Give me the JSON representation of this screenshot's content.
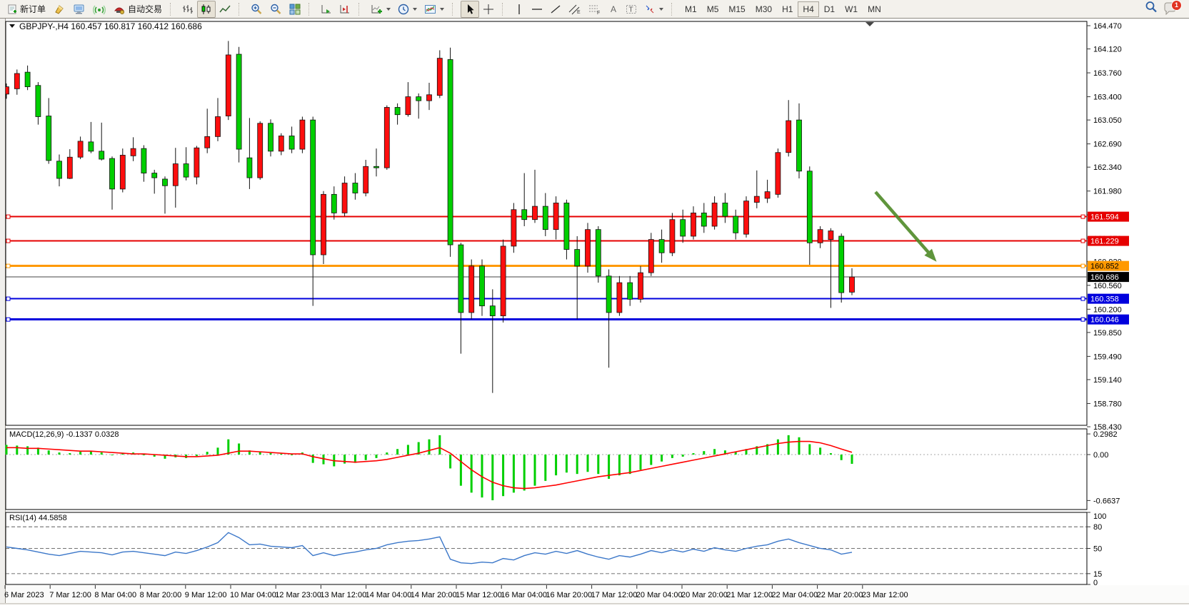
{
  "toolbar": {
    "new_order_label": "新订单",
    "autotrading_label": "自动交易",
    "timeframes": [
      "M1",
      "M5",
      "M15",
      "M30",
      "H1",
      "H4",
      "D1",
      "W1",
      "MN"
    ],
    "active_timeframe": "H4",
    "notification_count": "1"
  },
  "window": {
    "title_overlay": "GBPJPY-,H4  160.457 160.817 160.412 160.686"
  },
  "price_axis": {
    "ticks": [
      "164.470",
      "164.120",
      "163.760",
      "163.400",
      "163.050",
      "162.690",
      "162.340",
      "161.980",
      "161.620",
      "161.270",
      "160.920",
      "160.560",
      "160.200",
      "159.850",
      "159.490",
      "159.140",
      "158.780",
      "158.430"
    ]
  },
  "price_tags": [
    {
      "value": "161.594",
      "bg": "#e60000",
      "fg": "#ffffff"
    },
    {
      "value": "161.229",
      "bg": "#e60000",
      "fg": "#ffffff"
    },
    {
      "value": "160.852",
      "bg": "#ff9900",
      "fg": "#000000"
    },
    {
      "value": "160.686",
      "bg": "#000000",
      "fg": "#ffffff"
    },
    {
      "value": "160.358",
      "bg": "#0000dd",
      "fg": "#ffffff"
    },
    {
      "value": "160.046",
      "bg": "#0000dd",
      "fg": "#ffffff"
    }
  ],
  "hlines": [
    {
      "price": 161.594,
      "color": "#e60000",
      "width": 2,
      "handle": true
    },
    {
      "price": 161.229,
      "color": "#e60000",
      "width": 2,
      "handle": true
    },
    {
      "price": 160.852,
      "color": "#ff9900",
      "width": 3,
      "handle": true
    },
    {
      "price": 160.686,
      "color": "#444444",
      "width": 1,
      "handle": false
    },
    {
      "price": 160.358,
      "color": "#0000dd",
      "width": 2,
      "handle": true
    },
    {
      "price": 160.046,
      "color": "#0000dd",
      "width": 3,
      "handle": true
    }
  ],
  "time_axis": {
    "labels": [
      "6 Mar 2023",
      "7 Mar 12:00",
      "8 Mar 04:00",
      "8 Mar 20:00",
      "9 Mar 12:00",
      "10 Mar 04:00",
      "12 Mar 23:00",
      "13 Mar 12:00",
      "14 Mar 04:00",
      "14 Mar 20:00",
      "15 Mar 12:00",
      "16 Mar 04:00",
      "16 Mar 20:00",
      "17 Mar 12:00",
      "20 Mar 04:00",
      "20 Mar 20:00",
      "21 Mar 12:00",
      "22 Mar 04:00",
      "22 Mar 20:00",
      "23 Mar 12:00"
    ]
  },
  "chart_data": {
    "type": "candlestick",
    "symbol": "GBPJPY-",
    "timeframe": "H4",
    "title": "GBPJPY-,H4",
    "last_ohlc": {
      "open": 160.457,
      "high": 160.817,
      "low": 160.412,
      "close": 160.686
    },
    "y_range": [
      158.43,
      164.47
    ],
    "up_color": "#fd0e0e",
    "down_color": "#00cf00",
    "candles": [
      [
        163.44,
        163.6,
        163.37,
        163.55
      ],
      [
        163.52,
        163.81,
        163.43,
        163.75
      ],
      [
        163.77,
        163.87,
        163.5,
        163.55
      ],
      [
        163.57,
        163.62,
        162.98,
        163.1
      ],
      [
        163.11,
        163.38,
        162.39,
        162.44
      ],
      [
        162.43,
        162.53,
        162.05,
        162.17
      ],
      [
        162.17,
        162.61,
        162.16,
        162.49
      ],
      [
        162.49,
        162.8,
        162.46,
        162.73
      ],
      [
        162.72,
        163.02,
        162.55,
        162.58
      ],
      [
        162.58,
        163.01,
        162.44,
        162.46
      ],
      [
        162.47,
        162.5,
        161.7,
        162.01
      ],
      [
        162.01,
        162.62,
        161.96,
        162.52
      ],
      [
        162.51,
        162.79,
        162.43,
        162.62
      ],
      [
        162.62,
        162.67,
        162.12,
        162.25
      ],
      [
        162.25,
        162.3,
        161.94,
        162.18
      ],
      [
        162.16,
        162.2,
        161.64,
        162.06
      ],
      [
        162.06,
        162.63,
        161.73,
        162.39
      ],
      [
        162.39,
        162.64,
        162.14,
        162.19
      ],
      [
        162.19,
        162.66,
        162.08,
        162.63
      ],
      [
        162.63,
        163.22,
        162.55,
        162.8
      ],
      [
        162.8,
        163.38,
        162.73,
        163.1
      ],
      [
        163.11,
        164.24,
        163.05,
        164.03
      ],
      [
        164.04,
        164.15,
        162.41,
        162.61
      ],
      [
        162.48,
        163.08,
        162.01,
        162.18
      ],
      [
        162.18,
        163.03,
        162.15,
        163.0
      ],
      [
        163.0,
        163.06,
        162.5,
        162.58
      ],
      [
        162.58,
        162.85,
        162.52,
        162.81
      ],
      [
        162.81,
        162.95,
        162.55,
        162.61
      ],
      [
        162.61,
        163.1,
        162.55,
        163.05
      ],
      [
        163.05,
        163.1,
        160.25,
        161.02
      ],
      [
        161.02,
        161.98,
        160.88,
        161.93
      ],
      [
        161.93,
        162.05,
        161.55,
        161.65
      ],
      [
        161.65,
        162.2,
        161.6,
        162.1
      ],
      [
        162.1,
        162.25,
        161.85,
        161.95
      ],
      [
        161.95,
        162.45,
        161.9,
        162.35
      ],
      [
        162.35,
        162.62,
        162.2,
        162.33
      ],
      [
        162.33,
        163.27,
        162.3,
        163.24
      ],
      [
        163.24,
        163.3,
        162.98,
        163.13
      ],
      [
        163.13,
        163.62,
        163.1,
        163.4
      ],
      [
        163.4,
        163.45,
        163.07,
        163.34
      ],
      [
        163.34,
        163.61,
        163.2,
        163.43
      ],
      [
        163.42,
        164.1,
        163.38,
        163.98
      ],
      [
        163.96,
        164.14,
        160.99,
        161.17
      ],
      [
        161.17,
        161.2,
        159.53,
        160.15
      ],
      [
        160.15,
        160.95,
        160.05,
        160.85
      ],
      [
        160.85,
        160.95,
        160.1,
        160.25
      ],
      [
        160.25,
        160.5,
        158.94,
        160.1
      ],
      [
        160.1,
        161.25,
        160.0,
        161.15
      ],
      [
        161.15,
        161.8,
        161.05,
        161.7
      ],
      [
        161.7,
        162.25,
        161.45,
        161.55
      ],
      [
        161.55,
        162.3,
        161.5,
        161.75
      ],
      [
        161.75,
        161.95,
        161.3,
        161.4
      ],
      [
        161.4,
        161.9,
        161.25,
        161.8
      ],
      [
        161.8,
        161.85,
        160.95,
        161.1
      ],
      [
        161.1,
        161.3,
        160.05,
        160.85
      ],
      [
        160.85,
        161.5,
        160.75,
        161.4
      ],
      [
        161.4,
        161.45,
        160.6,
        160.7
      ],
      [
        160.7,
        160.8,
        159.32,
        160.15
      ],
      [
        160.15,
        160.7,
        160.1,
        160.6
      ],
      [
        160.6,
        160.7,
        160.25,
        160.35
      ],
      [
        160.35,
        160.85,
        160.3,
        160.75
      ],
      [
        160.75,
        161.35,
        160.7,
        161.25
      ],
      [
        161.25,
        161.4,
        160.9,
        161.05
      ],
      [
        161.05,
        161.65,
        161.0,
        161.55
      ],
      [
        161.55,
        161.7,
        161.2,
        161.3
      ],
      [
        161.3,
        161.75,
        161.25,
        161.65
      ],
      [
        161.65,
        161.8,
        161.35,
        161.45
      ],
      [
        161.45,
        161.9,
        161.4,
        161.8
      ],
      [
        161.8,
        161.95,
        161.5,
        161.6
      ],
      [
        161.6,
        161.7,
        161.25,
        161.35
      ],
      [
        161.33,
        161.9,
        161.28,
        161.83
      ],
      [
        161.81,
        162.29,
        161.72,
        161.9
      ],
      [
        161.87,
        162.15,
        161.8,
        161.97
      ],
      [
        161.93,
        162.62,
        161.88,
        162.56
      ],
      [
        162.56,
        163.35,
        162.5,
        163.04
      ],
      [
        163.05,
        163.3,
        162.17,
        162.28
      ],
      [
        162.28,
        162.35,
        160.87,
        161.2
      ],
      [
        161.2,
        161.45,
        161.12,
        161.4
      ],
      [
        161.25,
        161.42,
        160.22,
        161.38
      ],
      [
        161.3,
        161.34,
        160.3,
        160.45
      ],
      [
        160.457,
        160.817,
        160.412,
        160.686
      ]
    ],
    "indicators": {
      "macd": {
        "label": "MACD(12,26,9)",
        "value_main": "-0.1337",
        "value_signal": "0.0328",
        "axis_labels": [
          "0.2982",
          "0.00",
          "-0.6637"
        ],
        "hist_color": "#00cf00",
        "signal_color": "#ff0000",
        "histogram": [
          0.14,
          0.13,
          0.12,
          0.1,
          0.06,
          0.03,
          0.02,
          0.04,
          0.05,
          0.03,
          -0.01,
          0.02,
          0.03,
          0.0,
          -0.03,
          -0.06,
          -0.04,
          -0.05,
          -0.02,
          0.04,
          0.1,
          0.22,
          0.16,
          0.06,
          0.04,
          0.02,
          0.01,
          0.0,
          0.03,
          -0.12,
          -0.14,
          -0.17,
          -0.13,
          -0.12,
          -0.08,
          -0.05,
          0.03,
          0.08,
          0.14,
          0.18,
          0.22,
          0.28,
          -0.2,
          -0.45,
          -0.55,
          -0.62,
          -0.66,
          -0.6,
          -0.55,
          -0.52,
          -0.45,
          -0.38,
          -0.3,
          -0.26,
          -0.28,
          -0.25,
          -0.28,
          -0.35,
          -0.3,
          -0.28,
          -0.22,
          -0.15,
          -0.1,
          -0.05,
          -0.03,
          0.02,
          0.05,
          0.08,
          0.06,
          0.04,
          0.08,
          0.12,
          0.15,
          0.22,
          0.28,
          0.25,
          0.15,
          0.1,
          0.02,
          -0.08,
          -0.1337
        ],
        "signal": [
          0.1,
          0.1,
          0.09,
          0.09,
          0.08,
          0.07,
          0.06,
          0.05,
          0.05,
          0.04,
          0.03,
          0.02,
          0.01,
          0.01,
          0.0,
          -0.01,
          -0.02,
          -0.03,
          -0.03,
          -0.02,
          -0.01,
          0.02,
          0.05,
          0.05,
          0.04,
          0.03,
          0.02,
          0.01,
          0.01,
          -0.03,
          -0.06,
          -0.09,
          -0.1,
          -0.11,
          -0.1,
          -0.09,
          -0.07,
          -0.04,
          -0.01,
          0.02,
          0.06,
          0.1,
          0.02,
          -0.1,
          -0.22,
          -0.32,
          -0.4,
          -0.45,
          -0.48,
          -0.49,
          -0.48,
          -0.46,
          -0.44,
          -0.41,
          -0.38,
          -0.35,
          -0.32,
          -0.3,
          -0.28,
          -0.26,
          -0.23,
          -0.2,
          -0.17,
          -0.14,
          -0.11,
          -0.08,
          -0.05,
          -0.02,
          0.01,
          0.04,
          0.07,
          0.1,
          0.13,
          0.16,
          0.18,
          0.19,
          0.19,
          0.17,
          0.13,
          0.08,
          0.0328
        ]
      },
      "rsi": {
        "label": "RSI(14)",
        "value": "44.5858",
        "levels": [
          80,
          50,
          15
        ],
        "axis_labels": [
          "100",
          "80",
          "50",
          "15",
          "0"
        ],
        "color": "#3b77c9",
        "values": [
          52,
          50,
          48,
          45,
          42,
          40,
          43,
          46,
          45,
          44,
          41,
          45,
          46,
          44,
          42,
          40,
          45,
          43,
          47,
          52,
          58,
          72,
          65,
          55,
          56,
          53,
          52,
          51,
          54,
          40,
          44,
          40,
          43,
          45,
          48,
          50,
          55,
          58,
          60,
          61,
          63,
          66,
          35,
          30,
          29,
          31,
          30,
          36,
          34,
          40,
          44,
          42,
          46,
          43,
          47,
          42,
          38,
          35,
          40,
          38,
          42,
          47,
          44,
          48,
          45,
          49,
          46,
          51,
          48,
          46,
          50,
          53,
          55,
          60,
          63,
          58,
          54,
          50,
          48,
          42,
          44.5858
        ]
      }
    },
    "annotations": [
      {
        "type": "arrow",
        "from": [
          1226,
          269
        ],
        "to": [
          1303,
          357
        ],
        "color": "#4e8a28"
      }
    ]
  }
}
